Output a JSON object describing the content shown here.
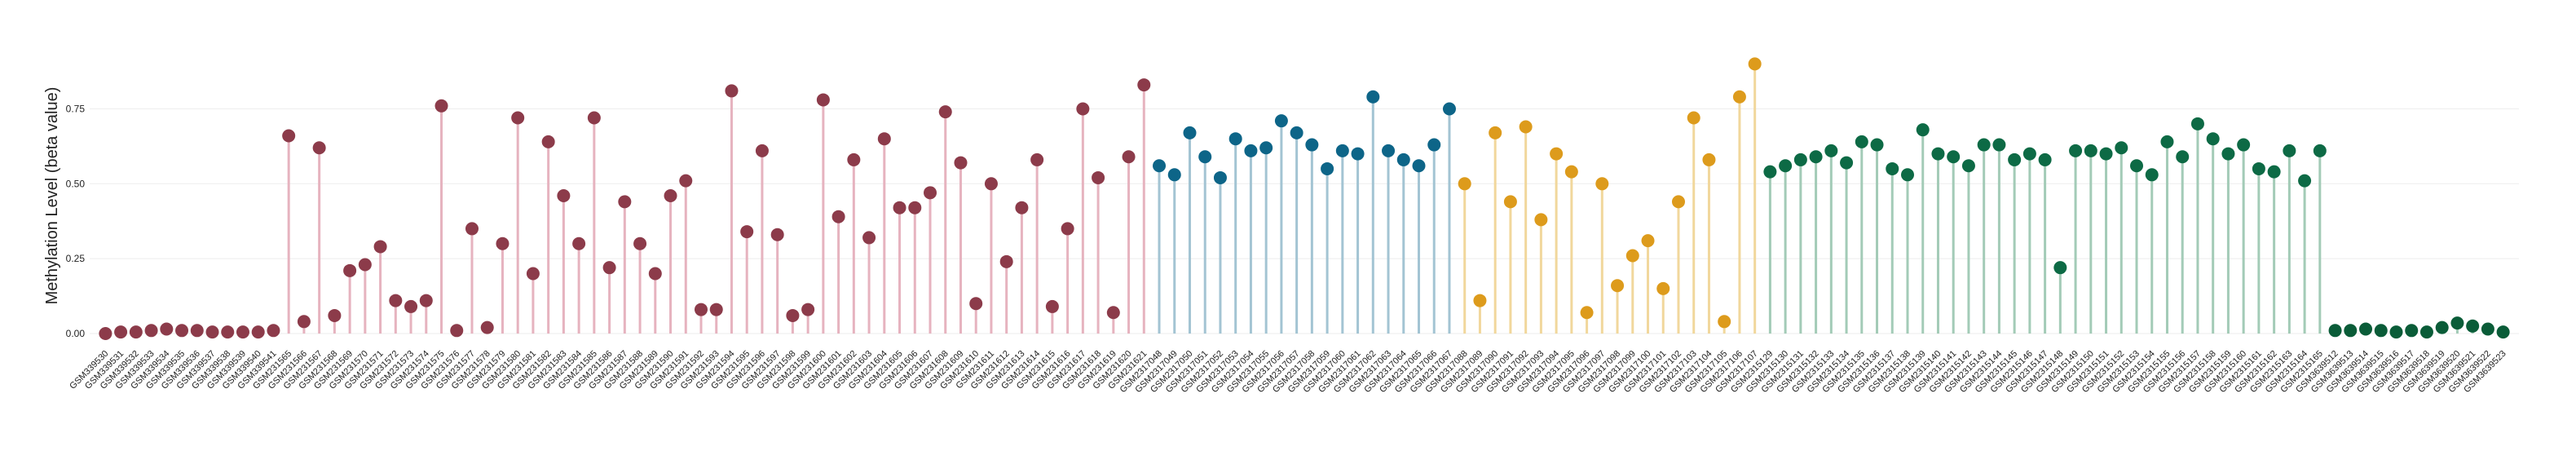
{
  "chart_data": {
    "type": "lollipop",
    "y_label": "Methylation Level (beta value)",
    "ylim": [
      -0.03,
      0.95
    ],
    "yticks": [
      {
        "value": 0,
        "label": "0.00"
      },
      {
        "value": 0.25,
        "label": "0.25"
      },
      {
        "value": 0.5,
        "label": "0.50"
      },
      {
        "value": 0.75,
        "label": "0.75"
      }
    ],
    "grid": true,
    "series": [
      {
        "color": "#8c3b4a",
        "stem_color": "#e6b3bf",
        "categories": [
          "GSM339530",
          "GSM339531",
          "GSM339532",
          "GSM339533",
          "GSM339534",
          "GSM339535",
          "GSM339536",
          "GSM339537",
          "GSM339538",
          "GSM339539",
          "GSM339540",
          "GSM339541"
        ],
        "values": [
          0,
          0.005,
          0.005,
          0.01,
          0.015,
          0.01,
          0.01,
          0.005,
          0.005,
          0.005,
          0.005,
          0.01
        ]
      },
      {
        "color": "#8c3b4a",
        "stem_color": "#e6b3bf",
        "categories": [
          "GSM231565",
          "GSM231566",
          "GSM231567",
          "GSM231568",
          "GSM231569",
          "GSM231570",
          "GSM231571",
          "GSM231572",
          "GSM231573",
          "GSM231574",
          "GSM231575",
          "GSM231576",
          "GSM231577",
          "GSM231578",
          "GSM231579",
          "GSM231580",
          "GSM231581",
          "GSM231582",
          "GSM231583",
          "GSM231584",
          "GSM231585",
          "GSM231586",
          "GSM231587",
          "GSM231588",
          "GSM231589",
          "GSM231590",
          "GSM231591",
          "GSM231592",
          "GSM231593",
          "GSM231594",
          "GSM231595",
          "GSM231596",
          "GSM231597",
          "GSM231598",
          "GSM231599",
          "GSM231600",
          "GSM231601",
          "GSM231602",
          "GSM231603",
          "GSM231604",
          "GSM231605",
          "GSM231606",
          "GSM231607",
          "GSM231608",
          "GSM231609",
          "GSM231610",
          "GSM231611",
          "GSM231612",
          "GSM231613",
          "GSM231614",
          "GSM231615",
          "GSM231616",
          "GSM231617",
          "GSM231618",
          "GSM231619",
          "GSM231620",
          "GSM231621"
        ],
        "values": [
          0.66,
          0.04,
          0.62,
          0.06,
          0.21,
          0.23,
          0.29,
          0.11,
          0.09,
          0.11,
          0.76,
          0.01,
          0.35,
          0.02,
          0.3,
          0.72,
          0.2,
          0.64,
          0.46,
          0.3,
          0.72,
          0.22,
          0.44,
          0.3,
          0.2,
          0.46,
          0.51,
          0.08,
          0.08,
          0.81,
          0.34,
          0.61,
          0.33,
          0.06,
          0.08,
          0.78,
          0.39,
          0.58,
          0.32,
          0.65,
          0.42,
          0.42,
          0.47,
          0.74,
          0.57,
          0.1,
          0.5,
          0.24,
          0.42,
          0.58,
          0.09,
          0.35,
          0.75,
          0.52,
          0.07,
          0.59,
          0.83
        ]
      },
      {
        "color": "#0d6588",
        "stem_color": "#a3c4d3",
        "categories": [
          "GSM2317048",
          "GSM2317049",
          "GSM2317050",
          "GSM2317051",
          "GSM2317052",
          "GSM2317053",
          "GSM2317054",
          "GSM2317055",
          "GSM2317056",
          "GSM2317057",
          "GSM2317058",
          "GSM2317059",
          "GSM2317060",
          "GSM2317061",
          "GSM2317062",
          "GSM2317063",
          "GSM2317064",
          "GSM2317065",
          "GSM2317066",
          "GSM2317067"
        ],
        "values": [
          0.56,
          0.53,
          0.67,
          0.59,
          0.52,
          0.65,
          0.61,
          0.62,
          0.71,
          0.67,
          0.63,
          0.55,
          0.61,
          0.6,
          0.79,
          0.61,
          0.58,
          0.56,
          0.63,
          0.75
        ]
      },
      {
        "color": "#dd9b1c",
        "stem_color": "#f1d79c",
        "categories": [
          "GSM2317088",
          "GSM2317089",
          "GSM2317090",
          "GSM2317091",
          "GSM2317092",
          "GSM2317093",
          "GSM2317094",
          "GSM2317095",
          "GSM2317096",
          "GSM2317097",
          "GSM2317098",
          "GSM2317099",
          "GSM2317100",
          "GSM2317101",
          "GSM2317102",
          "GSM2317103",
          "GSM2317104",
          "GSM2317105",
          "GSM2317106",
          "GSM2317107"
        ],
        "values": [
          0.5,
          0.11,
          0.67,
          0.44,
          0.69,
          0.38,
          0.6,
          0.54,
          0.07,
          0.5,
          0.16,
          0.26,
          0.31,
          0.15,
          0.44,
          0.72,
          0.58,
          0.04,
          0.79,
          0.9
        ]
      },
      {
        "color": "#0d6a45",
        "stem_color": "#a3cbb7",
        "categories": [
          "GSM2315129",
          "GSM2315130",
          "GSM2315131",
          "GSM2315132",
          "GSM2315133",
          "GSM2315134",
          "GSM2315135",
          "GSM2315136",
          "GSM2315137",
          "GSM2315138",
          "GSM2315139",
          "GSM2315140",
          "GSM2315141",
          "GSM2315142",
          "GSM2315143",
          "GSM2315144",
          "GSM2315145",
          "GSM2315146",
          "GSM2315147",
          "GSM2315148",
          "GSM2315149",
          "GSM2315150",
          "GSM2315151",
          "GSM2315152",
          "GSM2315153",
          "GSM2315154",
          "GSM2315155",
          "GSM2315156",
          "GSM2315157",
          "GSM2315158",
          "GSM2315159",
          "GSM2315160",
          "GSM2315161",
          "GSM2315162",
          "GSM2315163",
          "GSM2315164",
          "GSM2315165"
        ],
        "values": [
          0.54,
          0.56,
          0.58,
          0.59,
          0.61,
          0.57,
          0.64,
          0.63,
          0.55,
          0.53,
          0.68,
          0.6,
          0.59,
          0.56,
          0.63,
          0.63,
          0.58,
          0.6,
          0.58,
          0.22,
          0.61,
          0.61,
          0.6,
          0.62,
          0.56,
          0.53,
          0.64,
          0.59,
          0.7,
          0.65,
          0.6,
          0.63,
          0.55,
          0.54,
          0.61,
          0.51,
          0.61
        ]
      },
      {
        "color": "#0a5c38",
        "stem_color": "#a3cbb7",
        "categories": [
          "GSM3639512",
          "GSM3639513",
          "GSM3639514",
          "GSM3639515",
          "GSM3639516",
          "GSM3639517",
          "GSM3639518",
          "GSM3639519",
          "GSM3639520",
          "GSM3639521",
          "GSM3639522",
          "GSM3639523"
        ],
        "values": [
          0.01,
          0.01,
          0.015,
          0.01,
          0.005,
          0.01,
          0.005,
          0.02,
          0.035,
          0.025,
          0.015,
          0.005
        ]
      }
    ]
  }
}
